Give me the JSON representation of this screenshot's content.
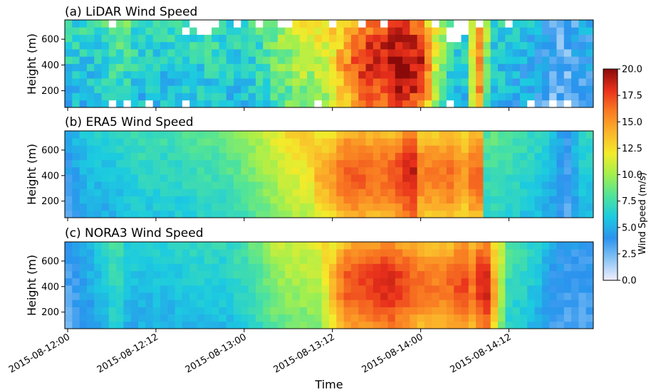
{
  "chart_data": {
    "type": "heatmap",
    "x_label": "Time",
    "x_ticks": [
      "2015-08-12:00",
      "2015-08-12:12",
      "2015-08-13:00",
      "2015-08-13:12",
      "2015-08-14:00",
      "2015-08-14:12"
    ],
    "x_range_hours": [
      0,
      71.5
    ],
    "y_label": "Height (m)",
    "y_ticks": [
      200,
      400,
      600
    ],
    "y_range": [
      70,
      750
    ],
    "colorbar": {
      "label": "Wind Speed (m/s)",
      "range": [
        0,
        20
      ],
      "ticks": [
        "0.0",
        "2.5",
        "5.0",
        "7.5",
        "10.0",
        "12.5",
        "15.0",
        "17.5",
        "20.0"
      ],
      "colormap": [
        "#f2eeff",
        "#89c4f4",
        "#2b93ee",
        "#1ccbe0",
        "#4fe39a",
        "#a2ef4e",
        "#f3eb2a",
        "#fbb52a",
        "#f97b22",
        "#e9301c",
        "#8a0a0a"
      ]
    },
    "panels": [
      {
        "title": "(a) LiDAR Wind Speed",
        "profile": {
          "x_hours": [
            0,
            4,
            8,
            10,
            12,
            16,
            20,
            24,
            26,
            28,
            30,
            32,
            34,
            36,
            38,
            40,
            42,
            44,
            46,
            48,
            50,
            52,
            54,
            56,
            57,
            58,
            60,
            62,
            64,
            66,
            68,
            70
          ],
          "speed": [
            6,
            6,
            7.5,
            6,
            6,
            6,
            6.5,
            6,
            6.5,
            8,
            9,
            10,
            10.5,
            11,
            13,
            16,
            16.5,
            17.5,
            18,
            17,
            11,
            7,
            5.5,
            15,
            9,
            6,
            5.5,
            5,
            4.5,
            3,
            2.5,
            4
          ]
        },
        "has_gaps": true
      },
      {
        "title": "(b) ERA5 Wind Speed",
        "profile": {
          "x_hours": [
            0,
            2,
            4,
            6,
            10,
            14,
            18,
            22,
            26,
            30,
            34,
            36,
            38,
            40,
            42,
            44,
            46,
            47,
            48,
            50,
            52,
            54,
            56,
            57,
            58,
            60,
            62,
            64,
            66,
            68,
            70
          ],
          "speed": [
            3.5,
            5,
            5.5,
            5.5,
            6.5,
            6.5,
            7,
            7.5,
            9,
            11,
            12,
            13,
            15,
            15,
            14.5,
            14.5,
            16,
            17.5,
            14,
            14,
            14.5,
            13,
            15.5,
            7,
            7.5,
            7,
            6.5,
            6,
            5,
            3.5,
            6
          ]
        },
        "has_gaps": false
      },
      {
        "title": "(c) NORA3 Wind Speed",
        "profile": {
          "x_hours": [
            0,
            2,
            4,
            6,
            7,
            8,
            10,
            14,
            18,
            22,
            26,
            28,
            30,
            34,
            36,
            38,
            40,
            42,
            44,
            46,
            48,
            50,
            52,
            54,
            55,
            56,
            57,
            58,
            60,
            62,
            64,
            66,
            68,
            70
          ],
          "speed": [
            3,
            4,
            5,
            6,
            7.5,
            5.5,
            5.5,
            5.5,
            6,
            6,
            7.5,
            9,
            9.5,
            10,
            12,
            15,
            15.5,
            16,
            16.5,
            15.5,
            14.5,
            14,
            14.5,
            16,
            14,
            16,
            17,
            13,
            7,
            6.5,
            5.5,
            4,
            3.5,
            3.5
          ]
        },
        "has_gaps": false
      }
    ]
  }
}
